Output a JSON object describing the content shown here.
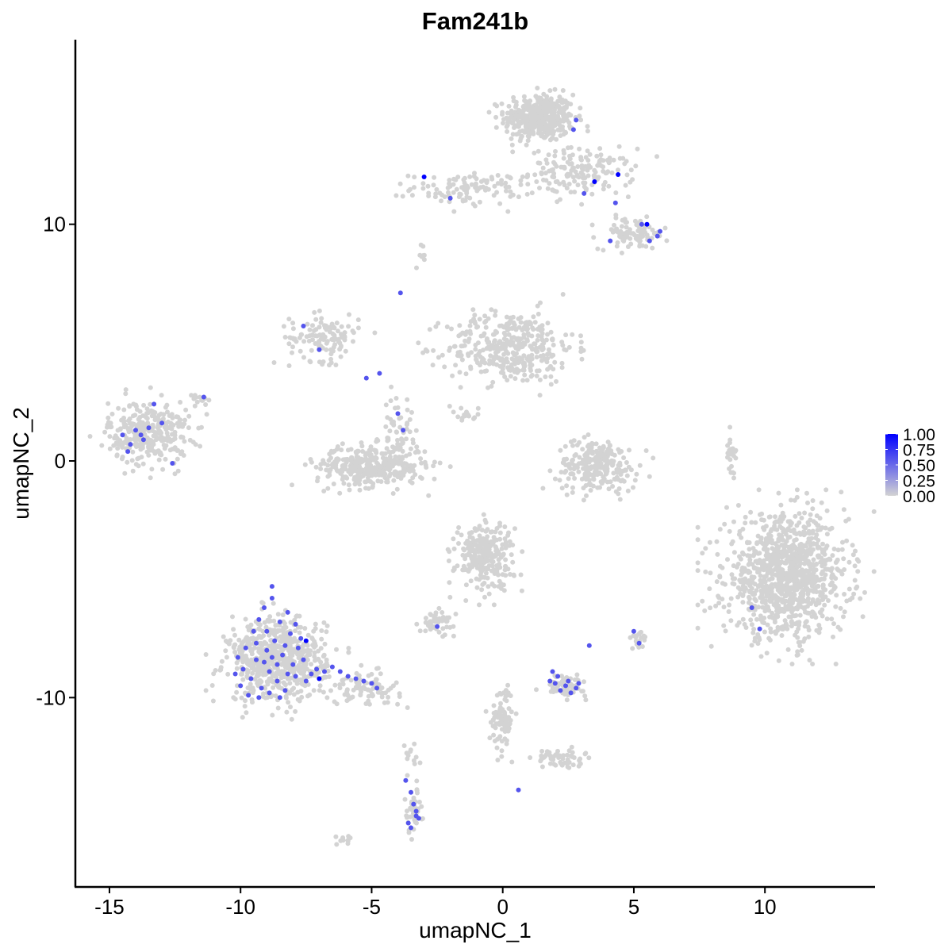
{
  "chart_data": {
    "type": "scatter",
    "title": "Fam241b",
    "xlabel": "umapNC_1",
    "ylabel": "umapNC_2",
    "xlim": [
      -16.3,
      14.2
    ],
    "ylim": [
      -18.0,
      17.8
    ],
    "x_ticks": [
      -15,
      -10,
      -5,
      0,
      5,
      10
    ],
    "x_tick_labels": [
      "-15",
      "-10",
      "-5",
      "0",
      "5",
      "10"
    ],
    "y_ticks": [
      -10,
      0,
      10
    ],
    "y_tick_labels": [
      "-10",
      "0",
      "10"
    ],
    "grid": false,
    "legend": {
      "placement": "right",
      "labels": [
        "1.00",
        "0.75",
        "0.50",
        "0.25",
        "0.00"
      ],
      "values": [
        1.0,
        0.75,
        0.5,
        0.25,
        0.0
      ],
      "color_low": "#d3d3d3",
      "color_high": "#0000ff"
    },
    "colors": {
      "low": "#d3d3d3",
      "high": "#0000ff",
      "axis": "#000000"
    },
    "clusters": [
      {
        "cx": 1.4,
        "cy": 14.5,
        "rx": 1.2,
        "ry": 0.9,
        "n": 420
      },
      {
        "cx": 3.0,
        "cy": 12.2,
        "rx": 1.8,
        "ry": 0.9,
        "n": 160
      },
      {
        "cx": -1.3,
        "cy": 11.5,
        "rx": 2.0,
        "ry": 0.6,
        "n": 110
      },
      {
        "cx": 5.0,
        "cy": 9.6,
        "rx": 1.2,
        "ry": 0.6,
        "n": 90
      },
      {
        "cx": 0.3,
        "cy": 4.8,
        "rx": 2.2,
        "ry": 1.4,
        "n": 380
      },
      {
        "cx": -6.8,
        "cy": 5.2,
        "rx": 1.2,
        "ry": 0.9,
        "n": 120
      },
      {
        "cx": -5.0,
        "cy": -0.2,
        "rx": 1.9,
        "ry": 0.8,
        "n": 360
      },
      {
        "cx": -4.0,
        "cy": 1.3,
        "rx": 0.5,
        "ry": 1.4,
        "n": 50
      },
      {
        "cx": -13.5,
        "cy": 1.2,
        "rx": 1.4,
        "ry": 1.2,
        "n": 320
      },
      {
        "cx": 3.6,
        "cy": -0.2,
        "rx": 1.4,
        "ry": 1.0,
        "n": 240
      },
      {
        "cx": 10.8,
        "cy": -4.9,
        "rx": 2.1,
        "ry": 2.3,
        "n": 1050
      },
      {
        "cx": 8.7,
        "cy": 0.4,
        "rx": 0.2,
        "ry": 0.7,
        "n": 25
      },
      {
        "cx": -0.7,
        "cy": -4.0,
        "rx": 1.0,
        "ry": 1.3,
        "n": 260
      },
      {
        "cx": -8.6,
        "cy": -8.4,
        "rx": 1.7,
        "ry": 1.6,
        "n": 620
      },
      {
        "cx": -5.3,
        "cy": -9.6,
        "rx": 1.3,
        "ry": 0.6,
        "n": 90
      },
      {
        "cx": 0.0,
        "cy": -10.8,
        "rx": 0.4,
        "ry": 1.2,
        "n": 90
      },
      {
        "cx": -2.5,
        "cy": -6.8,
        "rx": 0.6,
        "ry": 0.4,
        "n": 50
      },
      {
        "cx": 2.4,
        "cy": -9.5,
        "rx": 0.7,
        "ry": 0.4,
        "n": 70
      },
      {
        "cx": 2.2,
        "cy": -12.6,
        "rx": 0.8,
        "ry": 0.4,
        "n": 50
      },
      {
        "cx": -3.4,
        "cy": -14.8,
        "rx": 0.3,
        "ry": 0.8,
        "n": 50
      },
      {
        "cx": 5.2,
        "cy": -7.6,
        "rx": 0.3,
        "ry": 0.5,
        "n": 20
      },
      {
        "cx": -6.0,
        "cy": -16.0,
        "rx": 0.3,
        "ry": 0.2,
        "n": 10
      },
      {
        "cx": -3.0,
        "cy": 8.8,
        "rx": 0.3,
        "ry": 0.5,
        "n": 10
      },
      {
        "cx": -1.5,
        "cy": 2.0,
        "rx": 0.6,
        "ry": 0.3,
        "n": 15
      },
      {
        "cx": -11.5,
        "cy": 2.5,
        "rx": 0.4,
        "ry": 0.4,
        "n": 12
      },
      {
        "cx": -3.5,
        "cy": -12.5,
        "rx": 0.3,
        "ry": 0.6,
        "n": 12
      }
    ],
    "expressed_points": [
      [
        -9.9,
        -8.8,
        0.6
      ],
      [
        -9.6,
        -9.2,
        0.6
      ],
      [
        -9.4,
        -8.4,
        0.6
      ],
      [
        -9.2,
        -9.6,
        0.6
      ],
      [
        -9.0,
        -8.0,
        0.6
      ],
      [
        -8.9,
        -8.9,
        0.6
      ],
      [
        -8.7,
        -7.6,
        0.6
      ],
      [
        -8.6,
        -9.3,
        0.6
      ],
      [
        -8.4,
        -8.2,
        0.6
      ],
      [
        -8.3,
        -9.7,
        0.6
      ],
      [
        -8.1,
        -7.3,
        0.6
      ],
      [
        -8.0,
        -8.6,
        0.6
      ],
      [
        -7.9,
        -9.1,
        0.6
      ],
      [
        -7.8,
        -7.9,
        0.6
      ],
      [
        -7.6,
        -8.4,
        0.6
      ],
      [
        -9.8,
        -7.9,
        0.6
      ],
      [
        -9.5,
        -7.2,
        0.6
      ],
      [
        -9.3,
        -6.7,
        0.6
      ],
      [
        -9.1,
        -6.2,
        0.6
      ],
      [
        -8.8,
        -5.8,
        0.6
      ],
      [
        -8.5,
        -6.8,
        0.6
      ],
      [
        -8.2,
        -6.4,
        0.6
      ],
      [
        -7.9,
        -6.9,
        0.6
      ],
      [
        -7.7,
        -7.5,
        0.6
      ],
      [
        -8.8,
        -5.3,
        0.6
      ],
      [
        -10.0,
        -9.5,
        0.6
      ],
      [
        -9.7,
        -9.9,
        0.6
      ],
      [
        -9.3,
        -10.0,
        0.6
      ],
      [
        -8.9,
        -9.8,
        0.6
      ],
      [
        -8.5,
        -10.0,
        0.6
      ],
      [
        -10.1,
        -8.3,
        0.6
      ],
      [
        -10.2,
        -9.0,
        0.6
      ],
      [
        -9.0,
        -7.2,
        0.6
      ],
      [
        -8.6,
        -8.6,
        0.6
      ],
      [
        -8.2,
        -9.0,
        0.6
      ],
      [
        -9.4,
        -7.7,
        0.6
      ],
      [
        -9.1,
        -8.5,
        0.6
      ],
      [
        -8.8,
        -8.3,
        0.6
      ],
      [
        -8.3,
        -7.8,
        0.6
      ],
      [
        -7.5,
        -9.3,
        0.6
      ],
      [
        -7.3,
        -9.0,
        0.6
      ],
      [
        -7.1,
        -8.8,
        0.6
      ],
      [
        -6.8,
        -8.9,
        0.6
      ],
      [
        -6.5,
        -8.7,
        0.6
      ],
      [
        -6.2,
        -8.9,
        0.6
      ],
      [
        -5.9,
        -9.1,
        0.6
      ],
      [
        -5.6,
        -9.2,
        0.6
      ],
      [
        -5.3,
        -9.3,
        0.6
      ],
      [
        -5.0,
        -9.4,
        0.6
      ],
      [
        -4.8,
        -9.6,
        0.6
      ],
      [
        -7.5,
        -7.6,
        1.0
      ],
      [
        -7.0,
        -9.2,
        1.0
      ],
      [
        2.0,
        -9.4,
        0.6
      ],
      [
        2.2,
        -9.7,
        0.6
      ],
      [
        2.4,
        -9.5,
        0.6
      ],
      [
        2.6,
        -9.8,
        0.6
      ],
      [
        2.8,
        -9.6,
        0.6
      ],
      [
        1.8,
        -9.3,
        0.6
      ],
      [
        2.1,
        -9.1,
        0.6
      ],
      [
        2.5,
        -9.3,
        0.6
      ],
      [
        2.9,
        -9.4,
        0.6
      ],
      [
        1.9,
        -8.9,
        0.6
      ],
      [
        -3.5,
        -14.0,
        0.6
      ],
      [
        -3.4,
        -14.5,
        0.6
      ],
      [
        -3.3,
        -15.0,
        0.6
      ],
      [
        -3.6,
        -15.3,
        0.6
      ],
      [
        -3.2,
        -15.1,
        0.6
      ],
      [
        -3.5,
        -15.5,
        0.6
      ],
      [
        -3.7,
        -13.5,
        0.6
      ],
      [
        -3.3,
        -14.8,
        0.6
      ],
      [
        -14.5,
        1.1,
        0.6
      ],
      [
        -14.2,
        0.7,
        0.6
      ],
      [
        -14.0,
        1.3,
        0.6
      ],
      [
        -13.7,
        0.9,
        0.6
      ],
      [
        -13.5,
        1.4,
        0.6
      ],
      [
        -13.3,
        2.4,
        0.6
      ],
      [
        -13.0,
        1.6,
        0.6
      ],
      [
        -14.3,
        0.4,
        0.6
      ],
      [
        -13.8,
        1.1,
        0.6
      ],
      [
        -12.6,
        -0.1,
        0.6
      ],
      [
        -11.4,
        2.7,
        0.6
      ],
      [
        -7.6,
        5.7,
        0.6
      ],
      [
        -7.0,
        4.7,
        0.6
      ],
      [
        -5.2,
        3.5,
        0.6
      ],
      [
        -4.7,
        3.7,
        0.6
      ],
      [
        -3.9,
        7.1,
        0.6
      ],
      [
        -4.0,
        2.0,
        0.6
      ],
      [
        -3.8,
        1.3,
        0.6
      ],
      [
        2.7,
        14.0,
        0.6
      ],
      [
        2.8,
        14.4,
        0.6
      ],
      [
        3.1,
        11.3,
        0.6
      ],
      [
        -2.0,
        11.1,
        0.6
      ],
      [
        4.3,
        10.9,
        0.6
      ],
      [
        5.3,
        10.0,
        0.6
      ],
      [
        5.6,
        9.3,
        0.6
      ],
      [
        5.9,
        9.5,
        0.6
      ],
      [
        6.0,
        9.7,
        0.6
      ],
      [
        4.1,
        9.3,
        0.6
      ],
      [
        -3.0,
        12.0,
        1.0
      ],
      [
        3.5,
        11.8,
        1.0
      ],
      [
        4.4,
        12.1,
        1.0
      ],
      [
        5.5,
        10.0,
        1.0
      ],
      [
        -2.5,
        -7.0,
        0.6
      ],
      [
        9.5,
        -6.2,
        0.6
      ],
      [
        9.8,
        -7.1,
        0.6
      ],
      [
        5.0,
        -7.2,
        0.6
      ],
      [
        5.2,
        -7.7,
        0.6
      ],
      [
        3.3,
        -7.8,
        0.6
      ],
      [
        0.6,
        -13.9,
        0.6
      ]
    ]
  }
}
